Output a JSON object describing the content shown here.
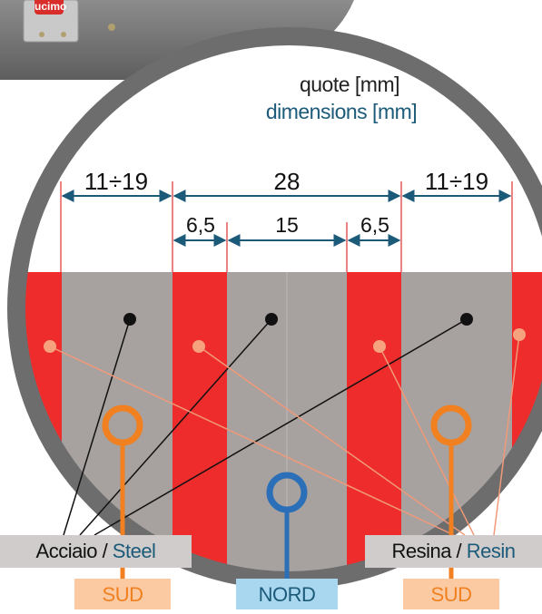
{
  "header": {
    "title_it": "quote [mm]",
    "title_en": "dimensions [mm]"
  },
  "dimensions": {
    "outer_left": "11÷19",
    "center": "28",
    "outer_right": "11÷19",
    "inner_left": "6,5",
    "inner_center": "15",
    "inner_right": "6,5"
  },
  "labels": {
    "steel_it": "Acciaio",
    "separator": " / ",
    "steel_en": "Steel",
    "resin_it": "Resina",
    "resin_en": "Resin"
  },
  "poles": {
    "sud_left": "SUD",
    "nord": "NORD",
    "sud_right": "SUD"
  },
  "badge": "ucimo",
  "colors": {
    "steel": "#a7a19f",
    "resin": "#ee2c2c",
    "dimension_line": "#1c5a7a",
    "sud": "#f08020",
    "nord": "#2a6fb8",
    "sud_box": "#fbcaa3",
    "nord_box": "#a9d7ef",
    "label_box": "#cfcccb",
    "frame": "#6d6d6d",
    "resin_leader": "#f09a7a"
  }
}
